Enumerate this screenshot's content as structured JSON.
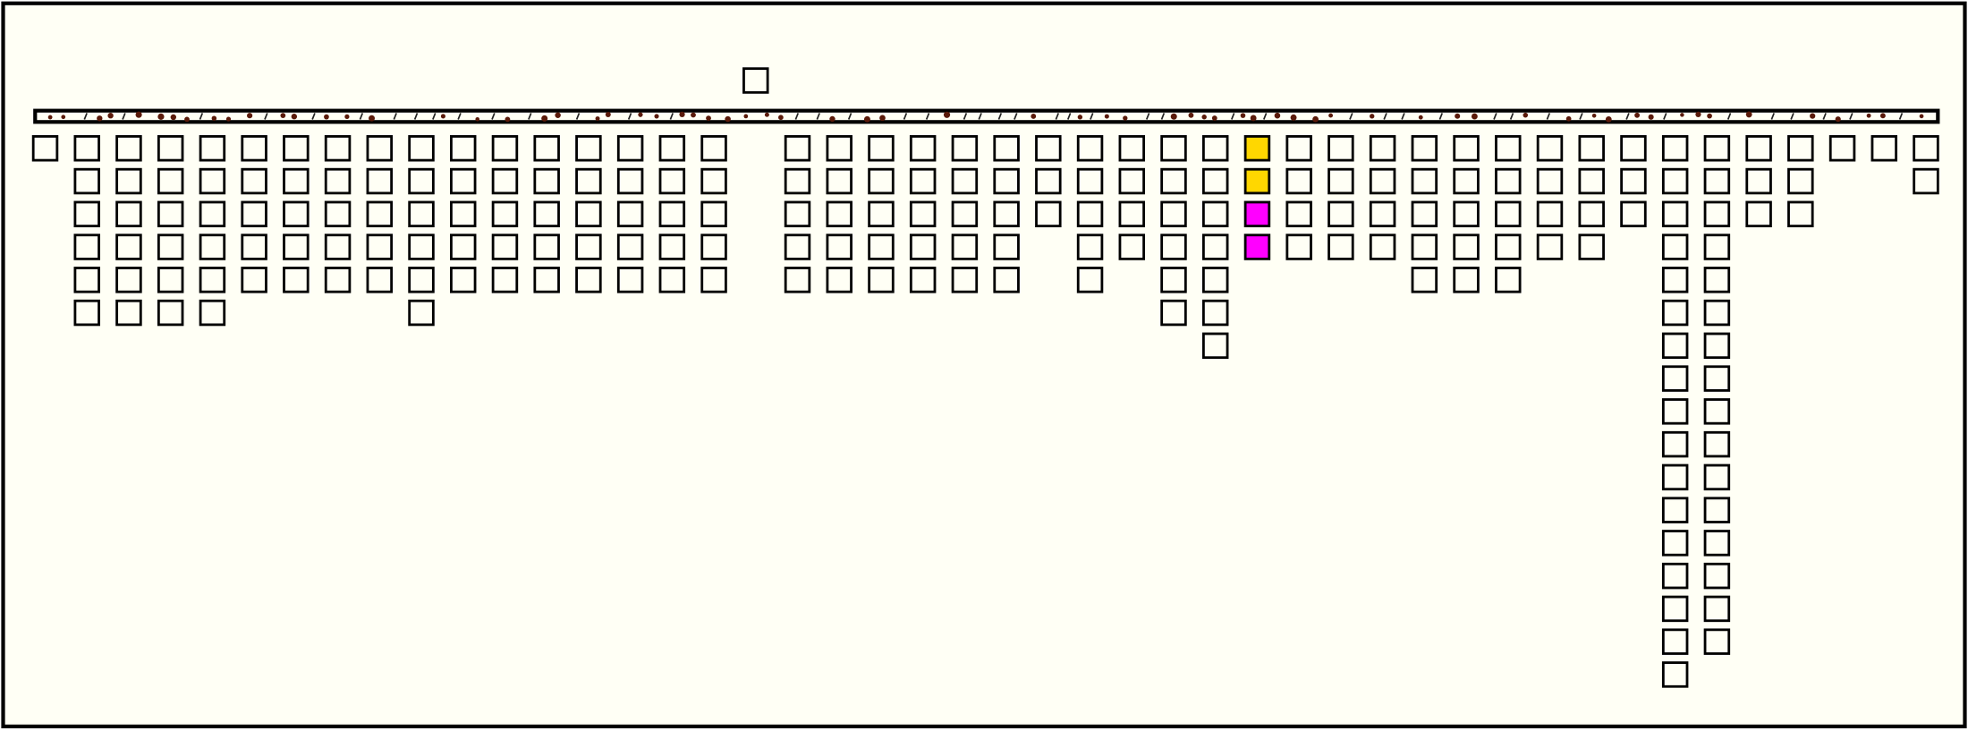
{
  "board": {
    "reserve": [
      "#fffff5"
    ],
    "columns": [
      [
        "#fffff5"
      ],
      [
        "#fffff5",
        "#fffff5",
        "#fffff5",
        "#fffff5",
        "#fffff5",
        "#fffff5"
      ],
      [
        "#fffff5",
        "#fffff5",
        "#fffff5",
        "#fffff5",
        "#fffff5",
        "#fffff5"
      ],
      [
        "#fffff5",
        "#fffff5",
        "#fffff5",
        "#fffff5",
        "#fffff5",
        "#fffff5"
      ],
      [
        "#fffff5",
        "#fffff5",
        "#fffff5",
        "#fffff5",
        "#fffff5",
        "#fffff5"
      ],
      [
        "#fffff5",
        "#fffff5",
        "#fffff5",
        "#fffff5",
        "#fffff5"
      ],
      [
        "#fffff5",
        "#fffff5",
        "#fffff5",
        "#fffff5",
        "#fffff5"
      ],
      [
        "#fffff5",
        "#fffff5",
        "#fffff5",
        "#fffff5",
        "#fffff5"
      ],
      [
        "#fffff5",
        "#fffff5",
        "#fffff5",
        "#fffff5",
        "#fffff5"
      ],
      [
        "#fffff5",
        "#fffff5",
        "#fffff5",
        "#fffff5",
        "#fffff5",
        "#fffff5"
      ],
      [
        "#fffff5",
        "#fffff5",
        "#fffff5",
        "#fffff5",
        "#fffff5"
      ],
      [
        "#fffff5",
        "#fffff5",
        "#fffff5",
        "#fffff5",
        "#fffff5"
      ],
      [
        "#fffff5",
        "#fffff5",
        "#fffff5",
        "#fffff5",
        "#fffff5"
      ],
      [
        "#fffff5",
        "#fffff5",
        "#fffff5",
        "#fffff5",
        "#fffff5"
      ],
      [
        "#fffff5",
        "#fffff5",
        "#fffff5",
        "#fffff5",
        "#fffff5"
      ],
      [
        "#fffff5",
        "#fffff5",
        "#fffff5",
        "#fffff5",
        "#fffff5"
      ],
      [
        "#fffff5",
        "#fffff5",
        "#fffff5",
        "#fffff5",
        "#fffff5"
      ],
      [],
      [
        "#fffff5",
        "#fffff5",
        "#fffff5",
        "#fffff5",
        "#fffff5"
      ],
      [
        "#fffff5",
        "#fffff5",
        "#fffff5",
        "#fffff5",
        "#fffff5"
      ],
      [
        "#fffff5",
        "#fffff5",
        "#fffff5",
        "#fffff5",
        "#fffff5"
      ],
      [
        "#fffff5",
        "#fffff5",
        "#fffff5",
        "#fffff5",
        "#fffff5"
      ],
      [
        "#fffff5",
        "#fffff5",
        "#fffff5",
        "#fffff5",
        "#fffff5"
      ],
      [
        "#fffff5",
        "#fffff5",
        "#fffff5",
        "#fffff5",
        "#fffff5"
      ],
      [
        "#fffff5",
        "#fffff5",
        "#fffff5"
      ],
      [
        "#fffff5",
        "#fffff5",
        "#fffff5",
        "#fffff5",
        "#fffff5"
      ],
      [
        "#fffff5",
        "#fffff5",
        "#fffff5",
        "#fffff5"
      ],
      [
        "#fffff5",
        "#fffff5",
        "#fffff5",
        "#fffff5",
        "#fffff5",
        "#fffff5"
      ],
      [
        "#fffff5",
        "#fffff5",
        "#fffff5",
        "#fffff5",
        "#fffff5",
        "#fffff5",
        "#fffff5"
      ],
      [
        "#ffd700",
        "#ffd700",
        "#ff00ff",
        "#ff00ff"
      ],
      [
        "#fffff5",
        "#fffff5",
        "#fffff5",
        "#fffff5"
      ],
      [
        "#fffff5",
        "#fffff5",
        "#fffff5",
        "#fffff5"
      ],
      [
        "#fffff5",
        "#fffff5",
        "#fffff5",
        "#fffff5"
      ],
      [
        "#fffff5",
        "#fffff5",
        "#fffff5",
        "#fffff5",
        "#fffff5"
      ],
      [
        "#fffff5",
        "#fffff5",
        "#fffff5",
        "#fffff5",
        "#fffff5"
      ],
      [
        "#fffff5",
        "#fffff5",
        "#fffff5",
        "#fffff5",
        "#fffff5"
      ],
      [
        "#fffff5",
        "#fffff5",
        "#fffff5",
        "#fffff5"
      ],
      [
        "#fffff5",
        "#fffff5",
        "#fffff5",
        "#fffff5"
      ],
      [
        "#fffff5",
        "#fffff5",
        "#fffff5"
      ],
      [
        "#fffff5",
        "#fffff5",
        "#fffff5",
        "#fffff5",
        "#fffff5",
        "#fffff5",
        "#fffff5",
        "#fffff5",
        "#fffff5",
        "#fffff5",
        "#fffff5",
        "#fffff5",
        "#fffff5",
        "#fffff5",
        "#fffff5",
        "#fffff5",
        "#fffff5"
      ],
      [
        "#fffff5",
        "#fffff5",
        "#fffff5",
        "#fffff5",
        "#fffff5",
        "#fffff5",
        "#fffff5",
        "#fffff5",
        "#fffff5",
        "#fffff5",
        "#fffff5",
        "#fffff5",
        "#fffff5",
        "#fffff5",
        "#fffff5",
        "#fffff5"
      ],
      [
        "#fffff5",
        "#fffff5",
        "#fffff5"
      ],
      [
        "#fffff5",
        "#fffff5",
        "#fffff5"
      ],
      [
        "#fffff5"
      ],
      [
        "#fffff5"
      ],
      [
        "#fffff5",
        "#fffff5"
      ]
    ]
  }
}
